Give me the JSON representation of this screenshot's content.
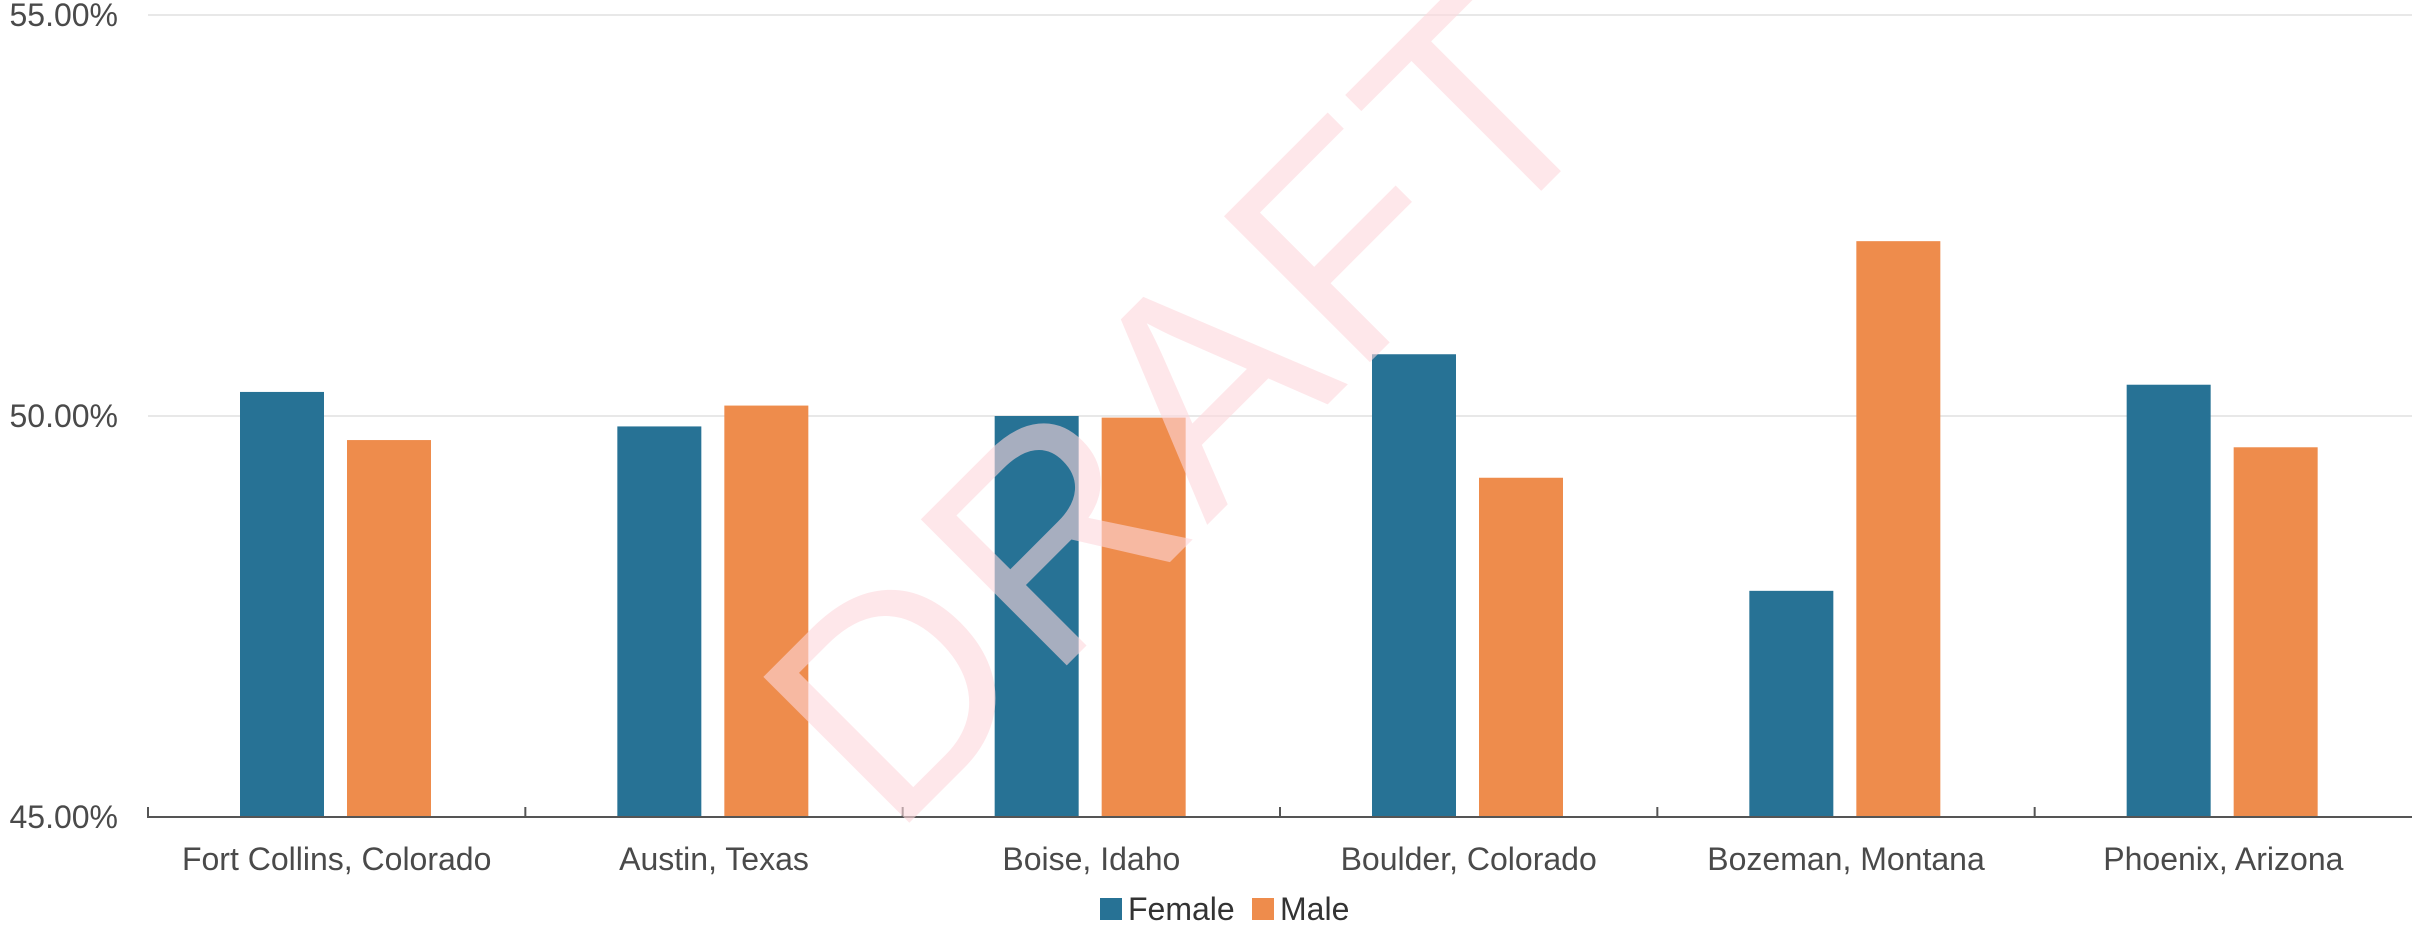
{
  "chart_data": {
    "type": "bar",
    "categories": [
      "Fort Collins, Colorado",
      "Austin, Texas",
      "Boise, Idaho",
      "Boulder, Colorado",
      "Bozeman, Montana",
      "Phoenix, Arizona"
    ],
    "series": [
      {
        "name": "Female",
        "values": [
          50.3,
          49.87,
          50.0,
          50.77,
          47.82,
          50.39
        ]
      },
      {
        "name": "Male",
        "values": [
          49.7,
          50.13,
          49.98,
          49.23,
          52.18,
          49.61
        ]
      }
    ],
    "ylim": [
      45,
      55
    ],
    "yticks": [
      45,
      50,
      55
    ],
    "ytick_labels": [
      "45.00%",
      "50.00%",
      "55.00%"
    ],
    "grid": true,
    "legend_position": "bottom-center",
    "watermark": "DRAFT",
    "colors": {
      "Female": "#277295",
      "Male": "#ee8c4c",
      "gridline": "#e8e8e8",
      "axis": "#555555",
      "watermark": "#fdd7dc"
    }
  }
}
